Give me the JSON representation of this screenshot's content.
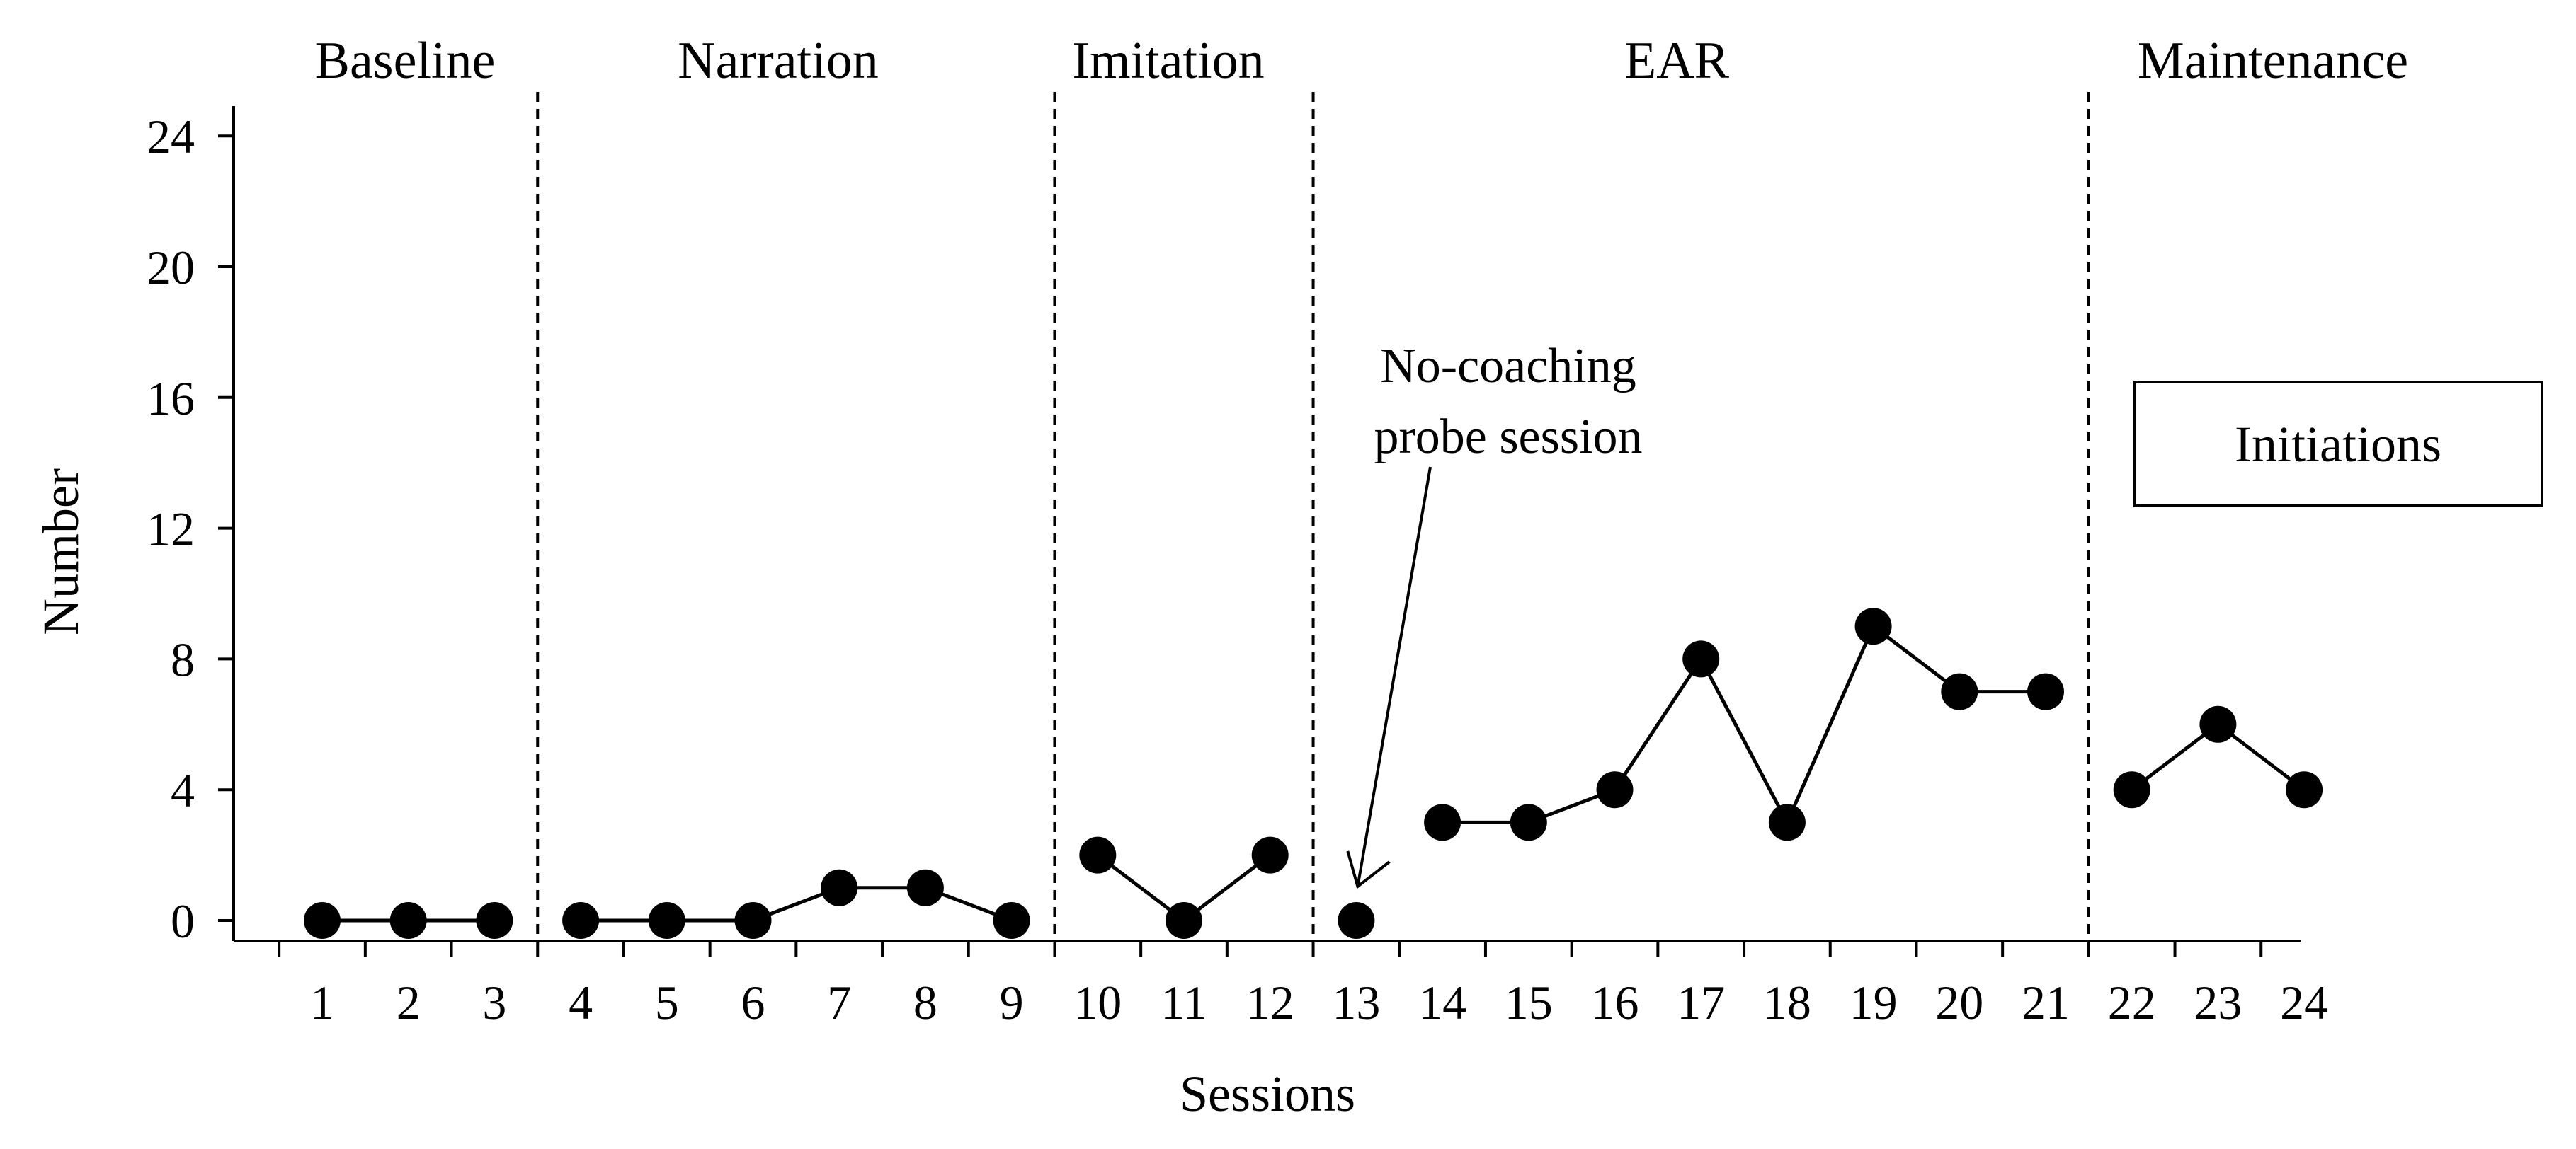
{
  "chart_data": {
    "type": "line",
    "title": "",
    "xlabel": "Sessions",
    "ylabel": "Number",
    "ylim": [
      0,
      25
    ],
    "y_ticks": [
      0,
      4,
      8,
      12,
      16,
      20,
      24
    ],
    "x_ticks": [
      1,
      2,
      3,
      4,
      5,
      6,
      7,
      8,
      9,
      10,
      11,
      12,
      13,
      14,
      15,
      16,
      17,
      18,
      19,
      20,
      21,
      22,
      23,
      24
    ],
    "grid": false,
    "phases": [
      {
        "label": "Baseline",
        "sessions": [
          1,
          3
        ]
      },
      {
        "label": "Narration",
        "sessions": [
          4,
          9
        ]
      },
      {
        "label": "Imitation",
        "sessions": [
          10,
          12
        ]
      },
      {
        "label": "EAR",
        "sessions": [
          13,
          21
        ]
      },
      {
        "label": "Maintenance",
        "sessions": [
          22,
          24
        ]
      }
    ],
    "phase_lines_after_session": [
      3.5,
      9.5,
      12.5,
      21.5
    ],
    "series": [
      {
        "name": "Initiations",
        "segments": [
          [
            [
              1,
              0
            ],
            [
              2,
              0
            ],
            [
              3,
              0
            ]
          ],
          [
            [
              4,
              0
            ],
            [
              5,
              0
            ],
            [
              6,
              0
            ],
            [
              7,
              1
            ],
            [
              8,
              1
            ],
            [
              9,
              0
            ]
          ],
          [
            [
              10,
              2
            ],
            [
              11,
              0
            ],
            [
              12,
              2
            ]
          ],
          [
            [
              13,
              0
            ]
          ],
          [
            [
              14,
              3
            ],
            [
              15,
              3
            ],
            [
              16,
              4
            ],
            [
              17,
              8
            ],
            [
              18,
              3
            ],
            [
              19,
              9
            ],
            [
              20,
              7
            ],
            [
              21,
              7
            ]
          ],
          [
            [
              22,
              4
            ],
            [
              23,
              6
            ],
            [
              24,
              4
            ]
          ]
        ]
      }
    ],
    "legend": {
      "label": "Initiations",
      "position": "right"
    },
    "annotation": {
      "lines": [
        "No-coaching",
        "probe session"
      ],
      "points_to_session": 13
    }
  }
}
